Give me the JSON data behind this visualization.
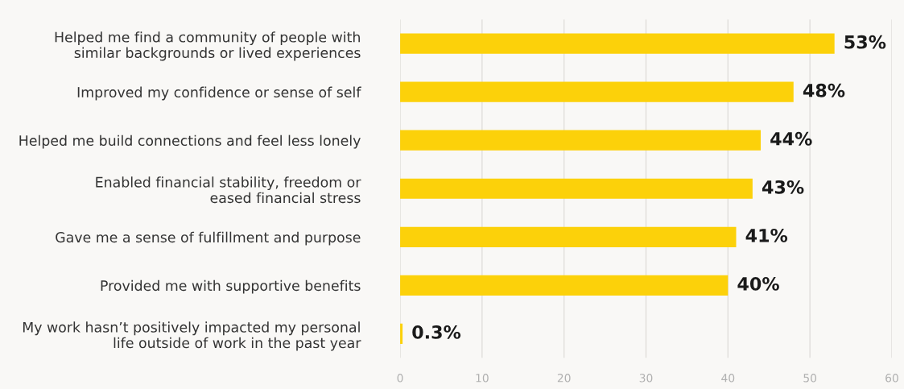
{
  "chart_data": {
    "type": "bar",
    "orientation": "horizontal",
    "categories": [
      "Helped me find a community of people with\nsimilar backgrounds or lived experiences",
      "Improved my confidence or sense of self",
      "Helped me build connections and feel less lonely",
      "Enabled financial stability, freedom or\neased financial stress",
      "Gave me a sense of fulfillment and purpose",
      "Provided me with supportive benefits",
      "My work hasn’t positively impacted my personal\nlife outside of work in the past year"
    ],
    "values": [
      53,
      48,
      44,
      43,
      41,
      40,
      0.3
    ],
    "value_labels": [
      "53%",
      "48%",
      "44%",
      "43%",
      "41%",
      "40%",
      "0.3%"
    ],
    "color": "#fcd10a",
    "xlim": [
      0,
      60
    ],
    "xticks": [
      0,
      10,
      20,
      30,
      40,
      50,
      60
    ],
    "grid": "x",
    "legend": false
  }
}
